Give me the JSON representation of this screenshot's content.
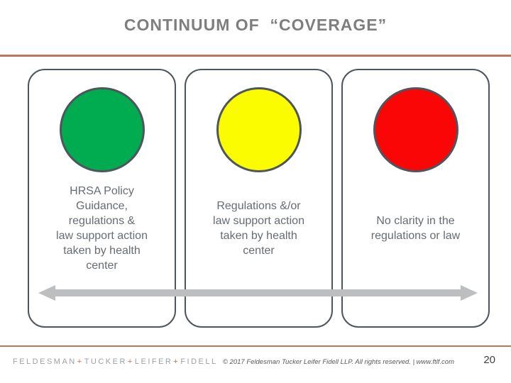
{
  "slide": {
    "title": "CONTINUUM OF  “COVERAGE”",
    "page_number": "20"
  },
  "cards": [
    {
      "status": "green",
      "circle_color": "#00ac4f",
      "label": "HRSA Policy\nGuidance,\nregulations &\nlaw support action\ntaken by health\ncenter"
    },
    {
      "status": "yellow",
      "circle_color": "#fcfc00",
      "label": "Regulations &/or\nlaw support action\ntaken by health\ncenter"
    },
    {
      "status": "red",
      "circle_color": "#fa0606",
      "label": "No clarity in the\nregulations or law"
    }
  ],
  "footer": {
    "logo_words": [
      "FELDESMAN",
      "TUCKER",
      "LEIFER",
      "FIDELL"
    ],
    "logo_separator": "+",
    "copyright": "© 2017 Feldesman Tucker Leifer Fidell LLP. All rights reserved.  |  www.ftlf.com"
  },
  "colors": {
    "accent_rule": "#c0735a",
    "card_border": "#4d565e",
    "arrow": "#bcbec0",
    "title_text": "#7e7e7e",
    "body_text": "#666c72"
  }
}
